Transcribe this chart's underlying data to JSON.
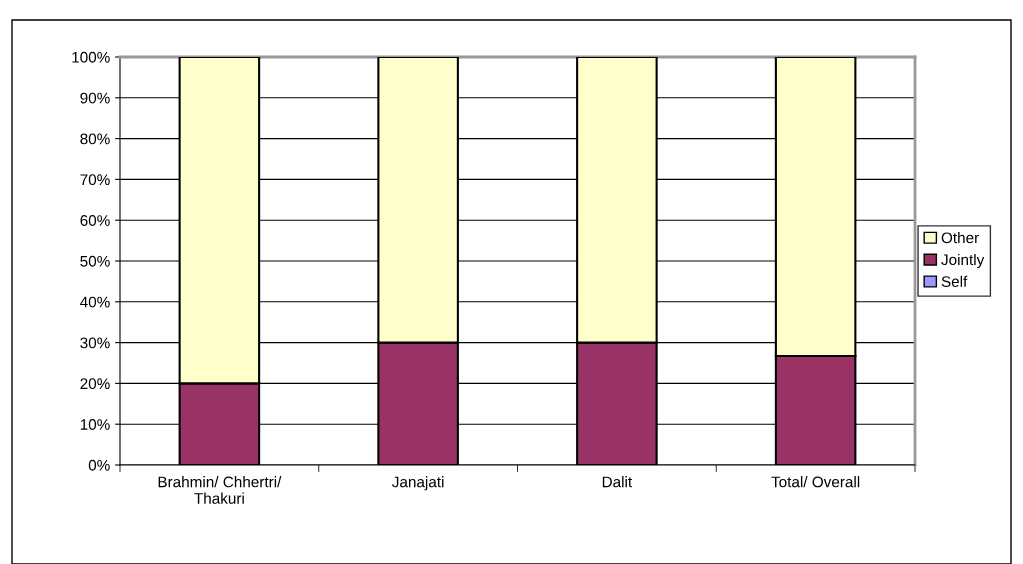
{
  "chart_data": {
    "type": "bar",
    "stacked": true,
    "categories": [
      "Brahmin/ Chhertri/\nThakuri",
      "Janajati",
      "Dalit",
      "Total/ Overall"
    ],
    "series": [
      {
        "name": "Self",
        "color": "#9999ff",
        "values": [
          0,
          0,
          0,
          0
        ]
      },
      {
        "name": "Jointly",
        "color": "#993366",
        "values": [
          20,
          30,
          30,
          26.7
        ]
      },
      {
        "name": "Other",
        "color": "#ffffcc",
        "values": [
          80,
          70,
          70,
          73.3
        ]
      }
    ],
    "ylim": [
      0,
      100
    ],
    "yticks": [
      {
        "value": 0,
        "label": "0%"
      },
      {
        "value": 10,
        "label": "10%"
      },
      {
        "value": 20,
        "label": "20%"
      },
      {
        "value": 30,
        "label": "30%"
      },
      {
        "value": 40,
        "label": "40%"
      },
      {
        "value": 50,
        "label": "50%"
      },
      {
        "value": 60,
        "label": "60%"
      },
      {
        "value": 70,
        "label": "70%"
      },
      {
        "value": 80,
        "label": "80%"
      },
      {
        "value": 90,
        "label": "90%"
      },
      {
        "value": 100,
        "label": "100%"
      }
    ],
    "grid": "y",
    "legend": "right"
  }
}
